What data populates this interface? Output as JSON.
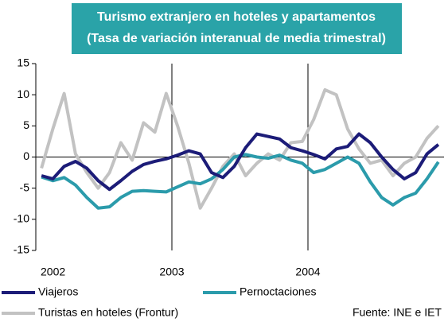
{
  "chart_data": {
    "type": "line",
    "title": "Turismo extranjero en hoteles y apartamentos",
    "subtitle": "(Tasa de variación interanual de media trimestral)",
    "source": "Fuente: INE e IET",
    "x": [
      0.5,
      1.5,
      2.5,
      3.5,
      4.5,
      5.5,
      6.5,
      7.5,
      8.5,
      9.5,
      10.5,
      11.5,
      12.5,
      13.5,
      14.5,
      15.5,
      16.5,
      17.5,
      18.5,
      19.5,
      20.5,
      21.5,
      22.5,
      23.5,
      24.5,
      25.5,
      26.5,
      27.5,
      28.5,
      29.5,
      30.5,
      31.5,
      32.5,
      33.5,
      34.5,
      35.5
    ],
    "xlim": [
      0,
      36
    ],
    "xticks": [
      {
        "value": 0,
        "label": "2002"
      },
      {
        "value": 12,
        "label": "2003"
      },
      {
        "value": 24,
        "label": "2004"
      }
    ],
    "ylim": [
      -15,
      15
    ],
    "yticks": [
      15,
      10,
      5,
      0,
      -5,
      -10,
      -15
    ],
    "series": [
      {
        "name": "Viajeros",
        "color": "#1c1c78",
        "values": [
          -3,
          -3.5,
          -1.5,
          -0.7,
          -1.8,
          -3.8,
          -5.2,
          -3.8,
          -2.3,
          -1.2,
          -0.7,
          -0.3,
          0.3,
          1,
          0.5,
          -2.5,
          -3.3,
          -1.5,
          1.5,
          3.7,
          3.3,
          2.9,
          1.5,
          1,
          0.4,
          -0.3,
          1.3,
          1.7,
          3.7,
          2.3,
          0,
          -2,
          -3.5,
          -2.5,
          0.5,
          2
        ]
      },
      {
        "name": "Pernoctaciones",
        "color": "#2b9bab",
        "values": [
          -3.2,
          -3.8,
          -3.3,
          -4.5,
          -6.5,
          -8.2,
          -8,
          -6.5,
          -5.5,
          -5.4,
          -5.5,
          -5.6,
          -4.8,
          -4,
          -4.3,
          -3.5,
          -2,
          0,
          0.4,
          0,
          -0.2,
          0.3,
          -0.5,
          -1,
          -2.5,
          -2,
          -1,
          0,
          -1,
          -4,
          -6.5,
          -7.7,
          -6.5,
          -5.8,
          -3.5,
          -0.8
        ]
      },
      {
        "name": "Turistas en hoteles (Frontur)",
        "color": "#c2c2c2",
        "values": [
          -1.8,
          4.5,
          10.2,
          0.5,
          -2.5,
          -5,
          -2.5,
          2.3,
          -0.5,
          5.5,
          4,
          10.2,
          5,
          -1,
          -8.2,
          -5,
          -1.5,
          0.5,
          -3,
          -1,
          0.5,
          -0.5,
          2.3,
          2.5,
          6,
          10.8,
          10,
          4.5,
          1.3,
          -1,
          -0.5,
          -3,
          -1,
          0,
          3,
          5
        ]
      }
    ]
  }
}
